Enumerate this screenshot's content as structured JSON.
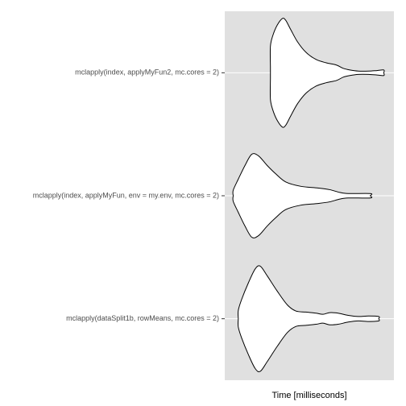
{
  "chart_data": {
    "type": "violin",
    "orientation": "horizontal",
    "xlabel": "Time [milliseconds]",
    "ylabel": "",
    "title": "",
    "x_tick_labels_shown": false,
    "grid": "horizontal major lines only",
    "panel_background": "#e0e0e0",
    "violin_fill": "#ffffff",
    "violin_stroke": "#000000",
    "xlim": [
      0,
      100
    ],
    "categories": [
      "mclapply(dataSplit1b, rowMeans, mc.cores = 2)",
      "mclapply(index, applyMyFun, env = my.env, mc.cores = 2)",
      "mclapply(index, applyMyFun2, mc.cores = 2)"
    ],
    "series": [
      {
        "category": "mclapply(index, applyMyFun2, mc.cores = 2)",
        "profile": [
          [
            27.0,
            0.1
          ],
          [
            27.0,
            0.48
          ],
          [
            28.5,
            0.68
          ],
          [
            31.0,
            0.86
          ],
          [
            34.0,
            0.98
          ],
          [
            36.0,
            0.95
          ],
          [
            39.0,
            0.78
          ],
          [
            43.0,
            0.56
          ],
          [
            48.0,
            0.37
          ],
          [
            54.0,
            0.24
          ],
          [
            60.0,
            0.18
          ],
          [
            66.0,
            0.14
          ],
          [
            70.0,
            0.08
          ],
          [
            74.0,
            0.05
          ],
          [
            79.0,
            0.03
          ],
          [
            85.0,
            0.03
          ],
          [
            90.0,
            0.04
          ],
          [
            94.0,
            0.05
          ],
          [
            94.0,
            0.0
          ]
        ]
      },
      {
        "category": "mclapply(index, applyMyFun, env = my.env, mc.cores = 2)",
        "profile": [
          [
            5.0,
            0.0
          ],
          [
            5.0,
            0.1
          ],
          [
            8.0,
            0.3
          ],
          [
            12.0,
            0.55
          ],
          [
            16.0,
            0.75
          ],
          [
            20.0,
            0.72
          ],
          [
            25.0,
            0.55
          ],
          [
            30.0,
            0.4
          ],
          [
            36.0,
            0.25
          ],
          [
            45.0,
            0.17
          ],
          [
            55.0,
            0.14
          ],
          [
            62.0,
            0.11
          ],
          [
            68.0,
            0.06
          ],
          [
            73.0,
            0.04
          ],
          [
            86.0,
            0.04
          ],
          [
            86.0,
            0.0
          ]
        ]
      },
      {
        "category": "mclapply(dataSplit1b, rowMeans, mc.cores = 2)",
        "profile": [
          [
            8.0,
            0.0
          ],
          [
            8.0,
            0.15
          ],
          [
            10.0,
            0.35
          ],
          [
            14.0,
            0.65
          ],
          [
            18.0,
            0.9
          ],
          [
            21.0,
            0.95
          ],
          [
            25.0,
            0.78
          ],
          [
            31.0,
            0.5
          ],
          [
            37.0,
            0.25
          ],
          [
            42.0,
            0.14
          ],
          [
            48.0,
            0.12
          ],
          [
            54.0,
            0.1
          ],
          [
            58.0,
            0.08
          ],
          [
            62.0,
            0.11
          ],
          [
            67.0,
            0.1
          ],
          [
            73.0,
            0.06
          ],
          [
            79.0,
            0.04
          ],
          [
            85.0,
            0.05
          ],
          [
            91.0,
            0.04
          ],
          [
            91.0,
            0.0
          ]
        ]
      }
    ]
  }
}
